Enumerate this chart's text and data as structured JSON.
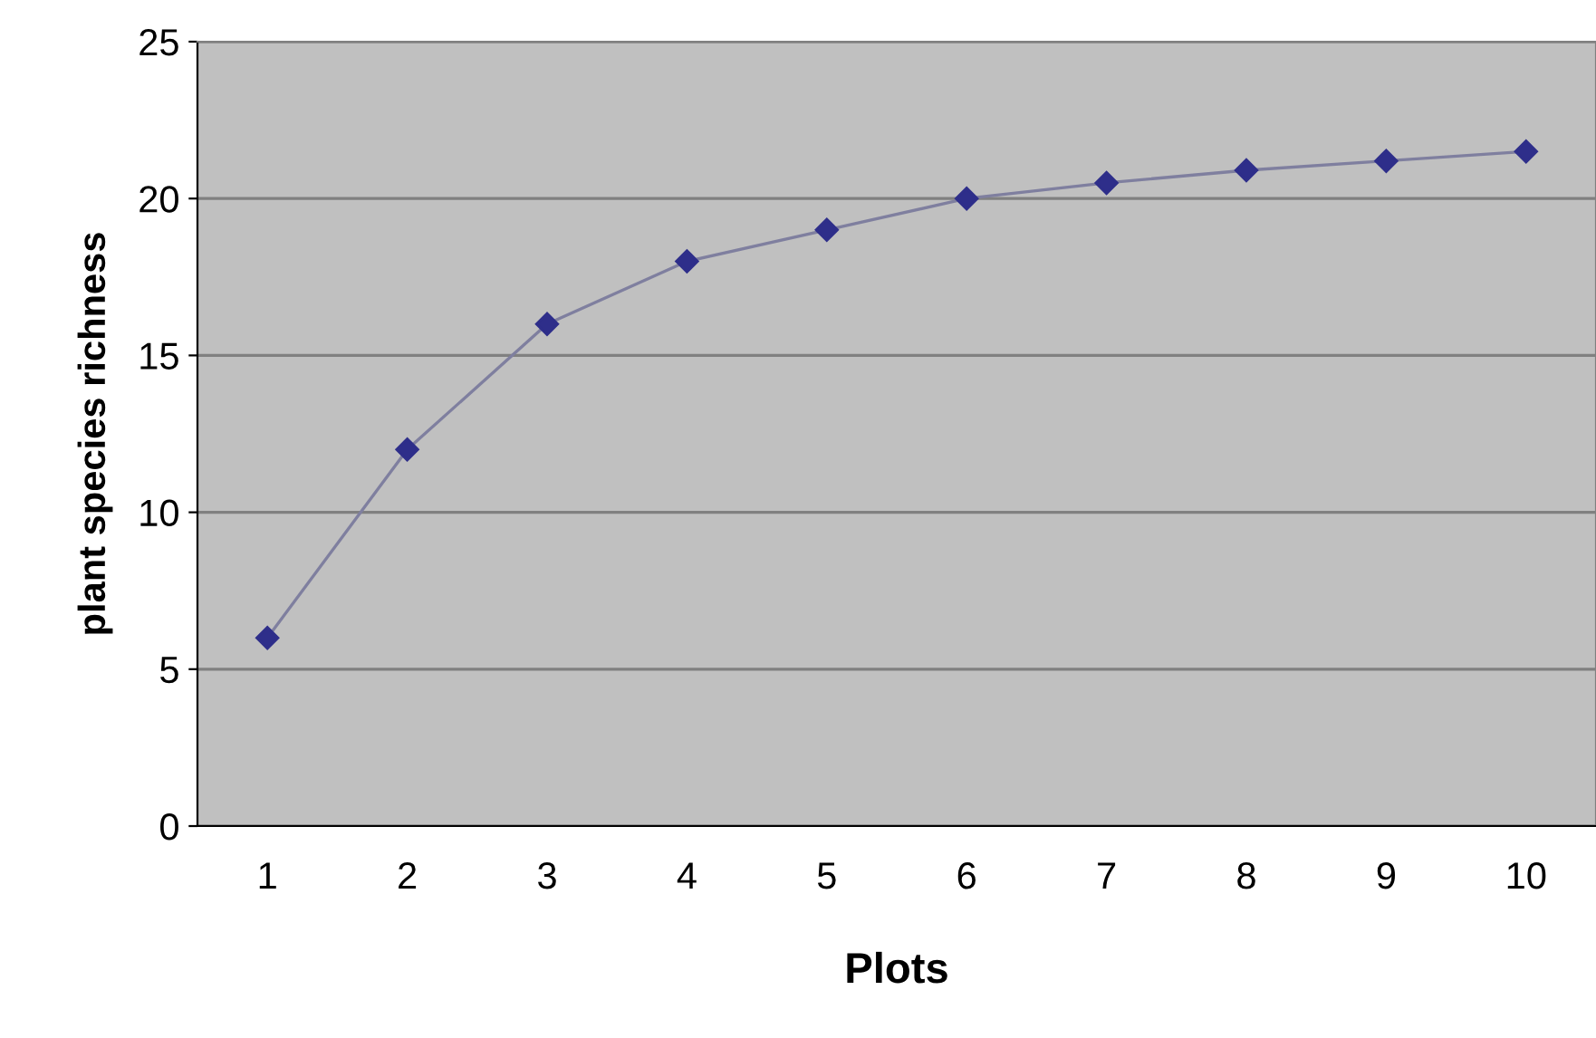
{
  "chart_data": {
    "type": "line",
    "xlabel": "Plots",
    "ylabel": "plant species richness",
    "categories": [
      "1",
      "2",
      "3",
      "4",
      "5",
      "6",
      "7",
      "8",
      "9",
      "10"
    ],
    "series": [
      {
        "color": "#2e2e8a",
        "values": [
          6,
          12,
          16,
          18,
          19,
          20,
          20.5,
          20.9,
          21.2,
          21.5
        ]
      }
    ],
    "ylim": [
      0,
      25
    ],
    "yticks": [
      0,
      5,
      10,
      15,
      20,
      25
    ],
    "grid": "y",
    "marker": "diamond",
    "line_style": "solid",
    "legend": false
  }
}
